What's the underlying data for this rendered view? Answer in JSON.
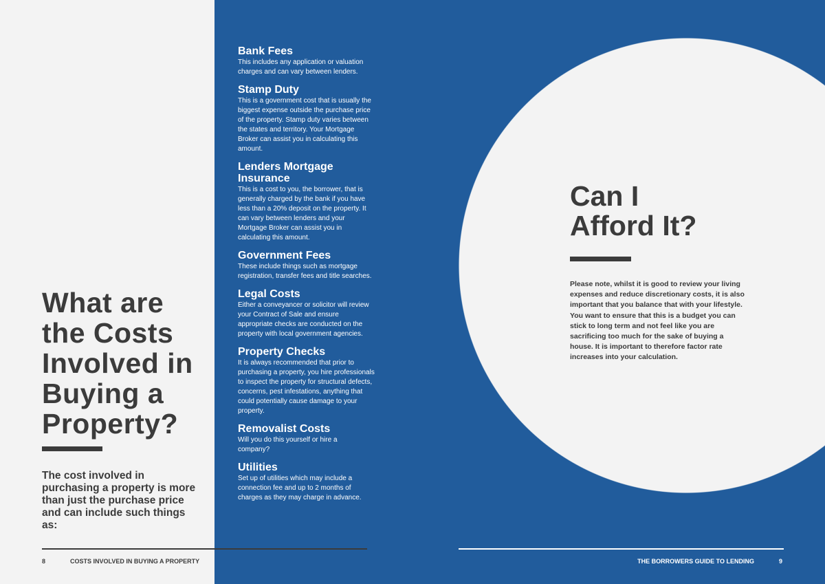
{
  "left_page": {
    "title": "What are the Costs Involved in Buying a Property?",
    "intro": "The cost involved in purchasing a property is more than just the purchase price and can include such things as:",
    "page_number": "8",
    "footer": "COSTS INVOLVED IN BUYING A PROPERTY"
  },
  "costs": [
    {
      "heading": "Bank Fees",
      "text": "This includes any application or valuation charges and can vary between lenders."
    },
    {
      "heading": "Stamp Duty",
      "text": "This is a government cost that is usually the biggest expense outside the purchase price of the property. Stamp duty varies between the states and territory. Your Mortgage Broker can assist you in calculating this amount."
    },
    {
      "heading": "Lenders Mortgage Insurance",
      "text": "This is a cost to you, the borrower, that is generally charged by the bank if you have less than a 20% deposit on the property. It can vary between lenders and your Mortgage Broker can assist you in calculating this amount."
    },
    {
      "heading": "Government Fees",
      "text": "These include things such as mortgage registration, transfer fees and title searches."
    },
    {
      "heading": "Legal Costs",
      "text": "Either a conveyancer or solicitor will review your Contract of Sale and ensure appropriate checks are conducted on the property with local government agencies."
    },
    {
      "heading": "Property Checks",
      "text": "It is always recommended that prior to purchasing a property, you hire professionals to inspect the property for structural defects, concerns, pest infestations, anything that could potentially cause damage to your property."
    },
    {
      "heading": "Removalist Costs",
      "text": "Will you do this yourself or hire a company?"
    },
    {
      "heading": "Utilities",
      "text": "Set up of utilities which may include a connection fee and up to 2 months of charges as they may charge in advance."
    }
  ],
  "right_page": {
    "title": "Can I Afford It?",
    "text": "Please note, whilst it is good to review your living expenses and reduce discretionary costs, it is also important that you balance that with your lifestyle. You want to ensure that this is a budget you can stick to long term and not feel like you are sacrificing too much for the sake of buying a house. It is important to therefore factor rate increases into your calculation.",
    "footer": "THE BORROWERS GUIDE TO LENDING",
    "page_number": "9"
  },
  "colors": {
    "brand_blue": "#215c9c",
    "dark_text": "#3b3b3b",
    "paper": "#f3f3f3"
  }
}
